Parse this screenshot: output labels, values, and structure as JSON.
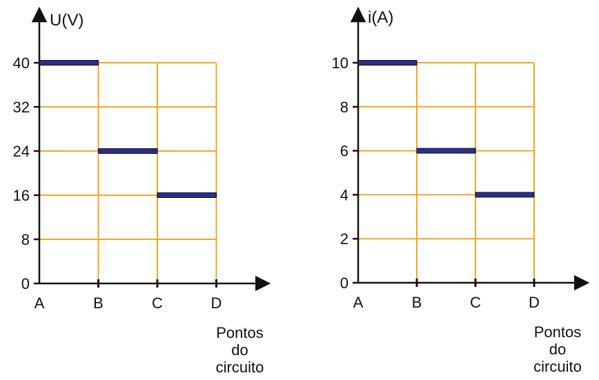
{
  "colors": {
    "grid": "#F5A623",
    "axis": "#111111",
    "segment": "#2B2F86",
    "segment_edge": "#0B0E3A"
  },
  "chart_data": [
    {
      "type": "line",
      "style": "step-segments",
      "ylabel": "U(V)",
      "xlabel_lines": [
        "Pontos",
        "do",
        "circuito"
      ],
      "categories": [
        "A",
        "B",
        "C",
        "D"
      ],
      "yticks": [
        "0",
        "8",
        "16",
        "24",
        "32",
        "40"
      ],
      "ylim": [
        0,
        40
      ],
      "grid": true,
      "series": [
        {
          "segments": [
            {
              "from": "A",
              "to": "B",
              "value": 40
            },
            {
              "from": "B",
              "to": "C",
              "value": 24
            },
            {
              "from": "C",
              "to": "D",
              "value": 16
            }
          ]
        }
      ]
    },
    {
      "type": "line",
      "style": "step-segments",
      "ylabel": "i(A)",
      "xlabel_lines": [
        "Pontos",
        "do",
        "circuito"
      ],
      "categories": [
        "A",
        "B",
        "C",
        "D"
      ],
      "yticks": [
        "0",
        "2",
        "4",
        "6",
        "8",
        "10"
      ],
      "ylim": [
        0,
        10
      ],
      "grid": true,
      "series": [
        {
          "segments": [
            {
              "from": "A",
              "to": "B",
              "value": 10
            },
            {
              "from": "B",
              "to": "C",
              "value": 6
            },
            {
              "from": "C",
              "to": "D",
              "value": 4
            }
          ]
        }
      ]
    }
  ]
}
